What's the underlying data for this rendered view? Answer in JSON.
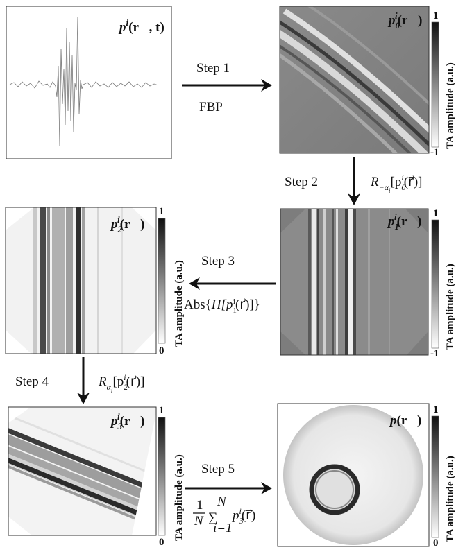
{
  "panels": {
    "signal": {
      "title_base": "p",
      "title_sup": "i",
      "title_args": "(r⃗, t)"
    },
    "p0": {
      "title_base": "p",
      "title_sub": "0",
      "title_sup": "i",
      "title_args": "(r⃗)"
    },
    "p1": {
      "title_base": "p",
      "title_sub": "1",
      "title_sup": "i",
      "title_args": "(r⃗)"
    },
    "p2": {
      "title_base": "p",
      "title_sub": "2",
      "title_sup": "i",
      "title_args": "(r⃗)"
    },
    "p3": {
      "title_base": "p",
      "title_sub": "3",
      "title_sup": "i",
      "title_args": "(r⃗)"
    },
    "final": {
      "title_base": "p",
      "title_args": "(r⃗)"
    }
  },
  "colorbars": {
    "label": "TA  amplitude  (a.u.)",
    "bipolar": {
      "max": "1",
      "min": "-1"
    },
    "unipolar": {
      "max": "1",
      "min": "0"
    }
  },
  "steps": {
    "step1": {
      "label": "Step 1",
      "op": "FBP"
    },
    "step2": {
      "label": "Step 2",
      "op_main": "R",
      "op_sub": "−α",
      "op_sub2": "i",
      "op_arg": "[p",
      "op_arg_sub": "0",
      "op_arg_sup": "i",
      "op_arg_end": "(r⃗)]"
    },
    "step3": {
      "label": "Step 3",
      "op_prefix": "Abs{",
      "op_main": "H[p",
      "op_sub": "1",
      "op_sup": "i",
      "op_end": "(r⃗)]}"
    },
    "step4": {
      "label": "Step 4",
      "op_main": "R",
      "op_sub": "α",
      "op_sub2": "i",
      "op_arg": "[p",
      "op_arg_sub": "2",
      "op_arg_sup": "i",
      "op_arg_end": "(r⃗)]"
    },
    "step5": {
      "label": "Step 5",
      "frac_num": "1",
      "frac_den": "N",
      "sum_top": "N",
      "sum_bot": "i=1",
      "sum_symbol": "∑",
      "op_main": "p",
      "op_sub": "3",
      "op_sup": "i",
      "op_end": "(r⃗)"
    }
  }
}
